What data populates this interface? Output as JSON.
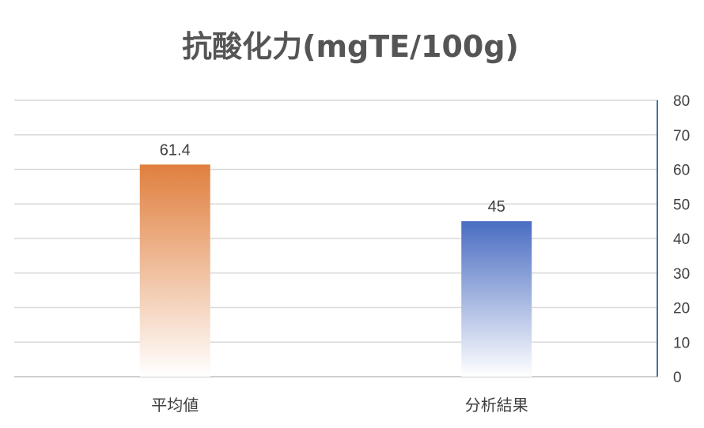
{
  "chart_data": {
    "type": "bar",
    "title": "抗酸化力(mgTE/100g)",
    "xlabel": "",
    "ylabel": "",
    "categories": [
      "平均値",
      "分析結果"
    ],
    "values": [
      61.4,
      45
    ],
    "data_labels": [
      "61.4",
      "45"
    ],
    "ylim": [
      0,
      80
    ],
    "y_ticks": [
      0,
      10,
      20,
      30,
      40,
      50,
      60,
      70,
      80
    ],
    "y_axis_side": "right",
    "grid": true,
    "legend": "none",
    "bar_colors": [
      "#E07F3E",
      "#4A6DC2"
    ],
    "bar_fill": "vertical gradient to white"
  }
}
